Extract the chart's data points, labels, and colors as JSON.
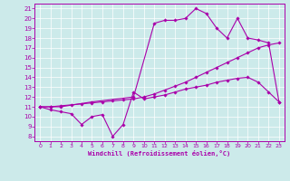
{
  "xlabel": "Windchill (Refroidissement éolien,°C)",
  "background_color": "#cceaea",
  "line_color": "#aa00aa",
  "xlim": [
    -0.5,
    23.5
  ],
  "ylim": [
    7.5,
    21.5
  ],
  "xticks": [
    0,
    1,
    2,
    3,
    4,
    5,
    6,
    7,
    8,
    9,
    10,
    11,
    12,
    13,
    14,
    15,
    16,
    17,
    18,
    19,
    20,
    21,
    22,
    23
  ],
  "yticks": [
    8,
    9,
    10,
    11,
    12,
    13,
    14,
    15,
    16,
    17,
    18,
    19,
    20,
    21
  ],
  "line1_x": [
    0,
    1,
    2,
    3,
    4,
    5,
    6,
    7,
    8,
    9,
    10,
    11,
    12,
    13,
    14,
    15,
    16,
    17,
    18,
    19,
    20,
    21,
    22,
    23
  ],
  "line1_y": [
    11,
    10.7,
    10.5,
    10.3,
    9.2,
    10.0,
    10.2,
    8.0,
    9.2,
    12.5,
    11.8,
    12.0,
    12.2,
    12.5,
    12.8,
    13.0,
    13.2,
    13.5,
    13.7,
    13.9,
    14.0,
    13.5,
    12.5,
    11.5
  ],
  "line2_x": [
    0,
    1,
    2,
    3,
    4,
    5,
    6,
    7,
    8,
    9,
    10,
    11,
    12,
    13,
    14,
    15,
    16,
    17,
    18,
    19,
    20,
    21,
    22,
    23
  ],
  "line2_y": [
    11,
    11.0,
    11.1,
    11.2,
    11.3,
    11.4,
    11.5,
    11.6,
    11.7,
    11.8,
    12.0,
    12.3,
    12.7,
    13.1,
    13.5,
    14.0,
    14.5,
    15.0,
    15.5,
    16.0,
    16.5,
    17.0,
    17.3,
    17.5
  ],
  "line3_x": [
    0,
    1,
    2,
    5,
    9,
    11,
    12,
    13,
    14,
    15,
    16,
    17,
    18,
    19,
    20,
    21,
    22,
    23
  ],
  "line3_y": [
    11,
    11.0,
    11.0,
    11.5,
    12.0,
    19.5,
    19.8,
    19.8,
    20.0,
    21.0,
    20.5,
    19.0,
    18.0,
    20.0,
    18.0,
    17.8,
    17.5,
    11.5
  ]
}
